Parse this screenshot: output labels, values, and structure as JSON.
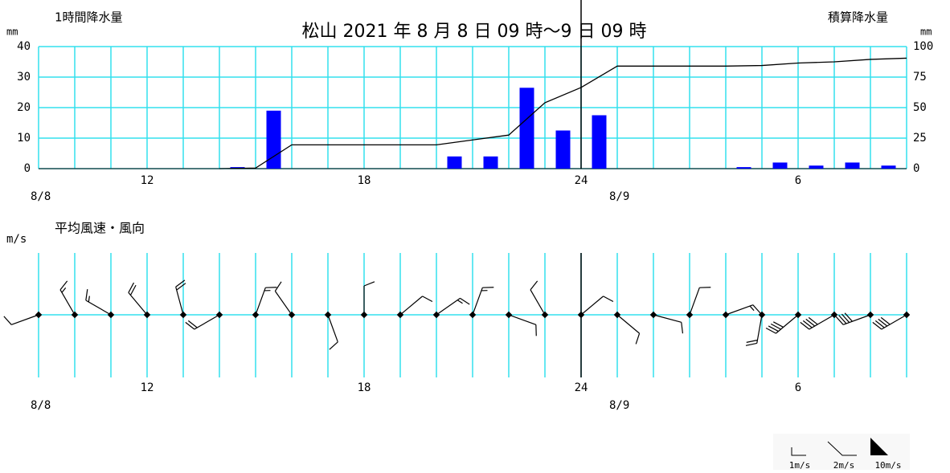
{
  "chart_data": [
    {
      "type": "bar",
      "title": "松山  2021 年 8 月 8 日 09 時～9 日 09 時",
      "y_unit": "mm",
      "y2_unit": "mm",
      "xlim": [
        0,
        24
      ],
      "xticks": [
        {
          "value": 3,
          "label": "12"
        },
        {
          "value": 9,
          "label": "18"
        },
        {
          "value": 15,
          "label": "24"
        },
        {
          "value": 21,
          "label": "6"
        }
      ],
      "date_labels": [
        {
          "value": 0,
          "label": "8/8"
        },
        {
          "value": 16,
          "label": "8/9"
        }
      ],
      "day_boundary": 15,
      "ylim": [
        0,
        40
      ],
      "yticks": [
        0,
        10,
        20,
        30,
        40
      ],
      "y2lim": [
        0,
        100
      ],
      "y2ticks": [
        0,
        25,
        50,
        75,
        100
      ],
      "grid": true,
      "series": [
        {
          "name": "1時間降水量",
          "color": "#0000ff",
          "type": "bar",
          "values": [
            0,
            0,
            0,
            0,
            0,
            0.5,
            19,
            0,
            0,
            0,
            0,
            4,
            4,
            26.5,
            12.5,
            17.5,
            0,
            0,
            0,
            0.5,
            2,
            1,
            2,
            1
          ]
        },
        {
          "name": "積算降水量",
          "color": "#000000",
          "type": "line",
          "axis": "y2",
          "values": [
            null,
            null,
            null,
            null,
            null,
            0,
            0.5,
            19.5,
            19.5,
            19.5,
            19.5,
            19.5,
            23.5,
            27.5,
            54,
            66.5,
            84,
            84,
            84,
            84,
            84.5,
            86.5,
            87.5,
            89.5,
            90.5
          ]
        }
      ]
    },
    {
      "type": "wind",
      "title": "平均風速・風向",
      "y_unit": "m/s",
      "xlim": [
        0,
        24
      ],
      "xticks": [
        {
          "value": 3,
          "label": "12"
        },
        {
          "value": 9,
          "label": "18"
        },
        {
          "value": 15,
          "label": "24"
        },
        {
          "value": 21,
          "label": "6"
        }
      ],
      "date_labels": [
        {
          "value": 0,
          "label": "8/8"
        },
        {
          "value": 16,
          "label": "8/9"
        }
      ],
      "day_boundary": 15,
      "grid": true,
      "direction": [
        250,
        330,
        300,
        320,
        345,
        240,
        20,
        325,
        160,
        0,
        50,
        55,
        20,
        110,
        330,
        50,
        130,
        105,
        20,
        70,
        190,
        230,
        240,
        250,
        240
      ],
      "speed": [
        2,
        3,
        3,
        4,
        4,
        4,
        3,
        2,
        2,
        2,
        2,
        3,
        3,
        2,
        2,
        2,
        2,
        2,
        2,
        3,
        4,
        8,
        8,
        8,
        8
      ],
      "legend_labels": [
        "1m/s",
        "2m/s",
        "10m/s"
      ]
    }
  ]
}
